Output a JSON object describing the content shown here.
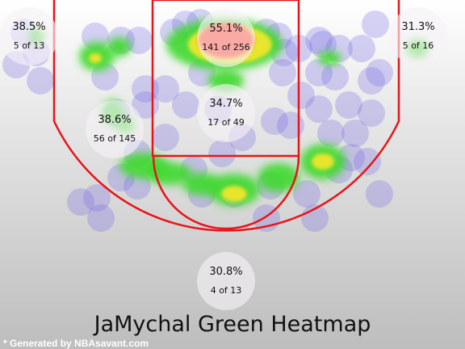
{
  "chart_data": {
    "type": "heatmap",
    "title": "JaMychal Green Heatmap",
    "credit": "* Generated by NBAsavant.com",
    "zones": [
      {
        "pct": "38.5%",
        "made": 5,
        "att": 13,
        "label": "5 of 13"
      },
      {
        "pct": "55.1%",
        "made": 141,
        "att": 256,
        "label": "141 of 256"
      },
      {
        "pct": "31.3%",
        "made": 5,
        "att": 16,
        "label": "5 of 16"
      },
      {
        "pct": "34.7%",
        "made": 17,
        "att": 49,
        "label": "17 of 49"
      },
      {
        "pct": "38.6%",
        "made": 56,
        "att": 145,
        "label": "56 of 145"
      },
      {
        "pct": "30.8%",
        "made": 4,
        "att": 13,
        "label": "4 of 13"
      }
    ],
    "colors": {
      "court_lines": "#e8141a",
      "background_top": "#ffffff",
      "background_bottom": "#bdbdbd",
      "low_density": "#7b72e6",
      "mid_density": "#3fd92f",
      "high_density": "#f0e62a",
      "peak_density": "#ff2a1a"
    }
  }
}
